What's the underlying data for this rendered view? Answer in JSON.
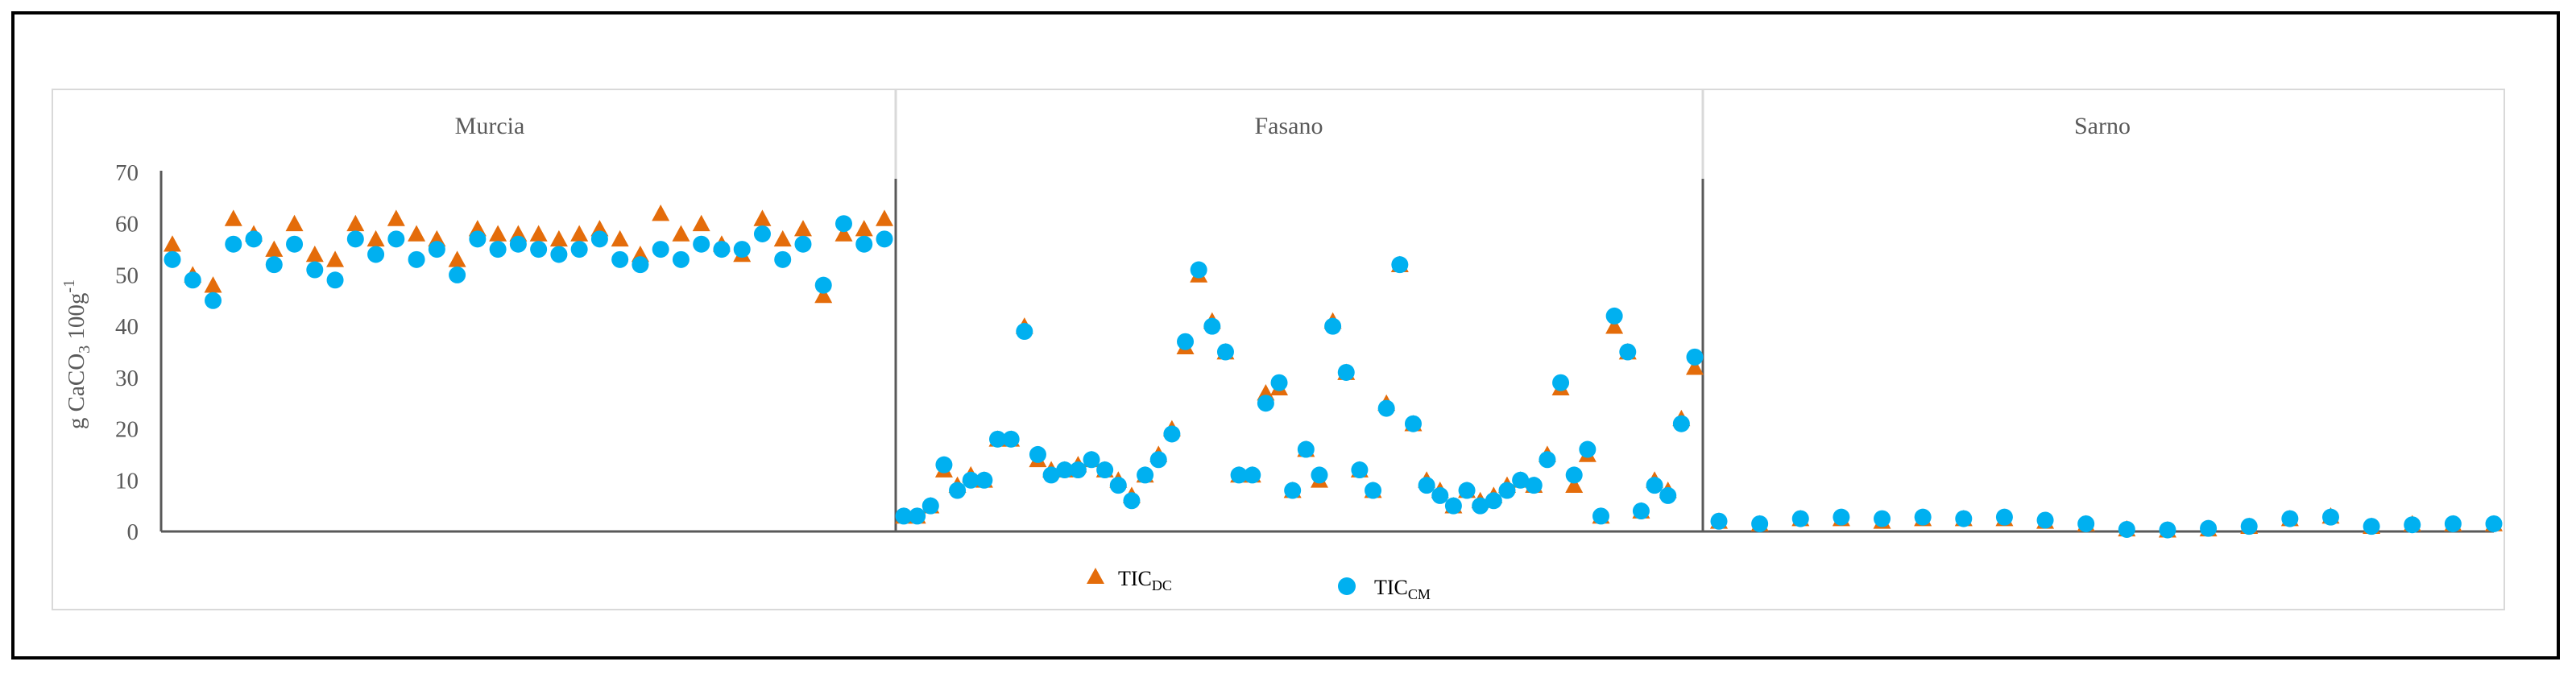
{
  "chart_data": {
    "type": "scatter",
    "ylabel": "g CaCO3 100g-1",
    "ylabel_parts": {
      "main": "g CaCO",
      "sub": "3",
      "rest": " 100g",
      "sup": "-1"
    },
    "ylim": [
      0,
      70
    ],
    "yticks": [
      "0",
      "10",
      "20",
      "30",
      "40",
      "50",
      "60",
      "70"
    ],
    "grid": false,
    "legend_position": "bottom",
    "series_meta": [
      {
        "key": "dc",
        "name": "TICDC",
        "name_main": "TIC",
        "name_sub": "DC",
        "marker": "triangle",
        "color": "#E46C0A"
      },
      {
        "key": "cm",
        "name": "TICCM",
        "name_main": "TIC",
        "name_sub": "CM",
        "marker": "circle",
        "color": "#00B0F0"
      }
    ],
    "panels": [
      {
        "title": "Murcia",
        "dc": [
          56,
          50,
          48,
          61,
          58,
          55,
          60,
          54,
          53,
          60,
          57,
          61,
          58,
          57,
          53,
          59,
          58,
          58,
          58,
          57,
          58,
          59,
          57,
          54,
          62,
          58,
          60,
          56,
          54,
          61,
          57,
          59,
          46,
          58,
          59,
          61
        ],
        "cm": [
          53,
          49,
          45,
          56,
          57,
          52,
          56,
          51,
          49,
          57,
          54,
          57,
          53,
          55,
          50,
          57,
          55,
          56,
          55,
          54,
          55,
          57,
          53,
          52,
          55,
          53,
          56,
          55,
          55,
          58,
          53,
          56,
          48,
          60,
          56,
          57
        ]
      },
      {
        "title": "Fasano",
        "dc": [
          3,
          3,
          5,
          12,
          9,
          11,
          10,
          18,
          18,
          40,
          14,
          12,
          12,
          13,
          14,
          12,
          10,
          7,
          11,
          15,
          20,
          36,
          50,
          41,
          35,
          11,
          11,
          27,
          28,
          8,
          16,
          10,
          41,
          31,
          12,
          8,
          25,
          52,
          21,
          10,
          8,
          5,
          8,
          6,
          7,
          9,
          10,
          9,
          15,
          28,
          9,
          15,
          3,
          40,
          35,
          4,
          10,
          8,
          22,
          32
        ],
        "cm": [
          3,
          3,
          5,
          13,
          8,
          10,
          10,
          18,
          18,
          39,
          15,
          11,
          12,
          12,
          14,
          12,
          9,
          6,
          11,
          14,
          19,
          37,
          51,
          40,
          35,
          11,
          11,
          25,
          29,
          8,
          16,
          11,
          40,
          31,
          12,
          8,
          24,
          52,
          21,
          9,
          7,
          5,
          8,
          5,
          6,
          8,
          10,
          9,
          14,
          29,
          11,
          16,
          3,
          42,
          35,
          4,
          9,
          7,
          21,
          34
        ]
      },
      {
        "title": "Sarno",
        "dc": [
          2,
          1.5,
          2.5,
          2.5,
          2,
          2.5,
          2.5,
          2.5,
          2,
          1.5,
          0.5,
          0.3,
          0.5,
          1,
          2.5,
          3,
          1,
          1.5,
          1.5,
          1.5
        ],
        "cm": [
          2,
          1.5,
          2.5,
          2.8,
          2.5,
          2.8,
          2.5,
          2.8,
          2.2,
          1.5,
          0.4,
          0.3,
          0.6,
          1,
          2.5,
          2.8,
          1,
          1.3,
          1.5,
          1.5
        ]
      }
    ]
  }
}
